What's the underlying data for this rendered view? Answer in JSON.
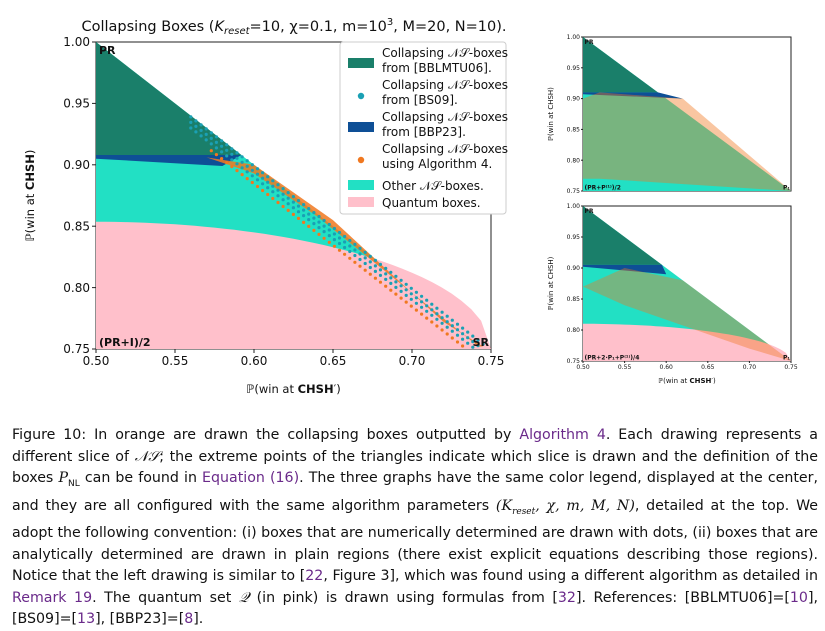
{
  "colors": {
    "bblmtu": "#1a7f6a",
    "bs09": "#1aa0b4",
    "bbp23": "#0e4f96",
    "alg4": "#f07820",
    "other_ns": "#22e0c4",
    "quantum": "#ffc0cb"
  },
  "chart_data": [
    {
      "type": "area",
      "title_prefix": "Collapsing Boxes (",
      "title_k": "K",
      "title_ksub": "reset",
      "title_mid": "=10, χ=0.1, m=10",
      "title_msup": "3",
      "title_end": ", M=20, N=10).",
      "xlabel_prefix": "ℙ(win at ",
      "xlabel_bold": "CHSH",
      "xlabel_suffix": "′)",
      "ylabel_prefix": "ℙ(win at ",
      "ylabel_bold": "CHSH",
      "ylabel_suffix": ")",
      "xlim": [
        0.5,
        0.75
      ],
      "ylim": [
        0.75,
        1.0
      ],
      "xticks": [
        "0.50",
        "0.55",
        "0.60",
        "0.65",
        "0.70",
        "0.75"
      ],
      "yticks": [
        "0.75",
        "0.80",
        "0.85",
        "0.90",
        "0.95",
        "1.00"
      ],
      "vertices": {
        "top": "PR",
        "bottom_left": "(PR+I)/2",
        "bottom_right": "SR"
      },
      "legend": [
        "Collapsing 𝒩𝒮-boxes from [BBLMTU06].",
        "Collapsing 𝒩𝒮-boxes from [BS09].",
        "Collapsing 𝒩𝒮-boxes from [BBP23].",
        "Collapsing 𝒩𝒮-boxes using Algorithm 4.",
        "Other 𝒩𝒮-boxes.",
        "Quantum boxes."
      ],
      "legend_placement": "top-right",
      "regions": {
        "bblmtu_below": 0.908,
        "quantum_max": 0.8536
      }
    },
    {
      "type": "area",
      "ylabel": "ℙ(win at CHSH)",
      "xlim": [
        0.5,
        0.75
      ],
      "ylim": [
        0.75,
        1.0
      ],
      "yticks": [
        "0.75",
        "0.80",
        "0.85",
        "0.90",
        "0.95",
        "1.00"
      ],
      "vertices": {
        "top": "PR",
        "bottom_left": "(PR+P⁽¹⁾)/2",
        "bottom_right": "P₁"
      }
    },
    {
      "type": "area",
      "xlabel_prefix": "ℙ(win at ",
      "xlabel_bold": "CHSH",
      "xlabel_suffix": "′)",
      "ylabel": "ℙ(win at CHSH)",
      "xlim": [
        0.5,
        0.75
      ],
      "ylim": [
        0.75,
        1.0
      ],
      "xticks": [
        "0.50",
        "0.55",
        "0.60",
        "0.65",
        "0.70",
        "0.75"
      ],
      "yticks": [
        "0.75",
        "0.80",
        "0.85",
        "0.90",
        "0.95",
        "1.00"
      ],
      "vertices": {
        "top": "PR",
        "bottom_left": "(PR+2·P₁+P⁽¹⁾)/4",
        "bottom_right": "P₁"
      }
    }
  ],
  "caption": {
    "p1": "Figure 10:  In orange are drawn the collapsing boxes outputted by ",
    "r1": "Algorithm 4",
    "p2": ".  Each drawing represents a different slice of ",
    "ns1": "𝒩𝒮",
    "p3": "; the extreme points of the triangles indicate which slice is drawn and the definition of the boxes ",
    "pnl": "P",
    "pnl_sub": "NL",
    "p4": " can be found in ",
    "r2": "Equation (16)",
    "p5": ". The three graphs have the same color legend, displayed at the center, and they are all configured with the same algorithm parameters ",
    "params": "(K",
    "params_sub": "reset",
    "params_end": ", χ, m, M, N)",
    "p6": ", detailed at the top. We adopt the following convention: (i) boxes that are numerically determined are drawn with dots, (ii) boxes that are analytically determined are drawn in plain regions (there exist explicit equations describing those regions). Notice that the left drawing is similar to [",
    "r3": "22",
    "p7": ", Figure 3], which was found using a different algorithm as detailed in ",
    "r4": "Remark 19",
    "p8": ".  The quantum set ",
    "q": "𝒬",
    "p9": " (in pink) is drawn using formulas from [",
    "r5": "32",
    "p10": "].  References:  [BBLMTU06]=[",
    "r6": "10",
    "p11": "], [BS09]=[",
    "r7": "13",
    "p12": "], [BBP23]=[",
    "r8": "8",
    "p13": "]."
  }
}
